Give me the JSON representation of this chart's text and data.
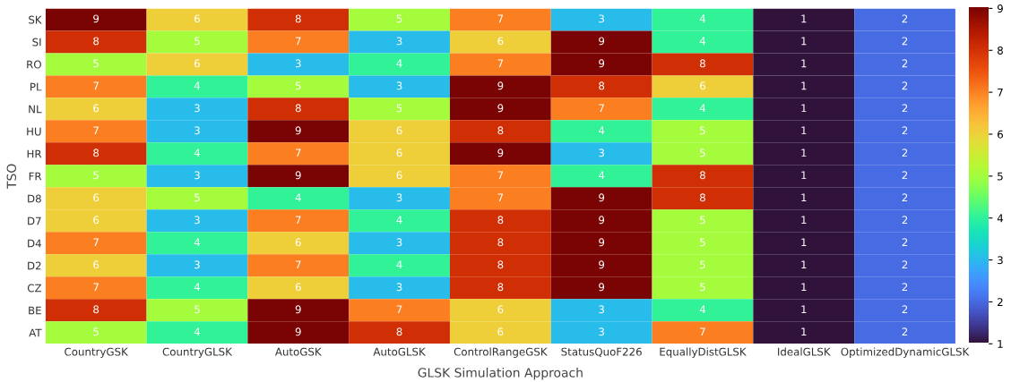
{
  "chart_data": {
    "type": "heatmap",
    "xlabel": "GLSK Simulation Approach",
    "ylabel": "TSO",
    "categories": [
      "CountryGSK",
      "CountryGLSK",
      "AutoGSK",
      "AutoGLSK",
      "ControlRangeGSK",
      "StatusQuoF226",
      "EquallyDistGLSK",
      "IdealGLSK",
      "OptimizedDynamicGLSK"
    ],
    "y_categories": [
      "SK",
      "SI",
      "RO",
      "PL",
      "NL",
      "HU",
      "HR",
      "FR",
      "D8",
      "D7",
      "D4",
      "D2",
      "CZ",
      "BE",
      "AT"
    ],
    "cells": [
      [
        9,
        6,
        8,
        5,
        7,
        3,
        4,
        1,
        2
      ],
      [
        8,
        5,
        7,
        3,
        6,
        9,
        4,
        1,
        2
      ],
      [
        5,
        6,
        3,
        4,
        7,
        9,
        8,
        1,
        2
      ],
      [
        7,
        4,
        5,
        3,
        9,
        8,
        6,
        1,
        2
      ],
      [
        6,
        3,
        8,
        5,
        9,
        7,
        4,
        1,
        2
      ],
      [
        7,
        3,
        9,
        6,
        8,
        4,
        5,
        1,
        2
      ],
      [
        8,
        4,
        7,
        6,
        9,
        3,
        5,
        1,
        2
      ],
      [
        5,
        3,
        9,
        6,
        7,
        4,
        8,
        1,
        2
      ],
      [
        6,
        5,
        4,
        3,
        7,
        9,
        8,
        1,
        2
      ],
      [
        6,
        3,
        7,
        4,
        8,
        9,
        5,
        1,
        2
      ],
      [
        7,
        4,
        6,
        3,
        8,
        9,
        5,
        1,
        2
      ],
      [
        6,
        3,
        7,
        4,
        8,
        9,
        5,
        1,
        2
      ],
      [
        7,
        4,
        6,
        3,
        8,
        9,
        5,
        1,
        2
      ],
      [
        8,
        5,
        9,
        7,
        6,
        3,
        4,
        1,
        2
      ],
      [
        5,
        4,
        9,
        8,
        6,
        3,
        7,
        1,
        2
      ]
    ],
    "clim": [
      1,
      9
    ],
    "cticks": [
      1,
      2,
      3,
      4,
      5,
      6,
      7,
      8,
      9
    ],
    "data_labels": true
  }
}
